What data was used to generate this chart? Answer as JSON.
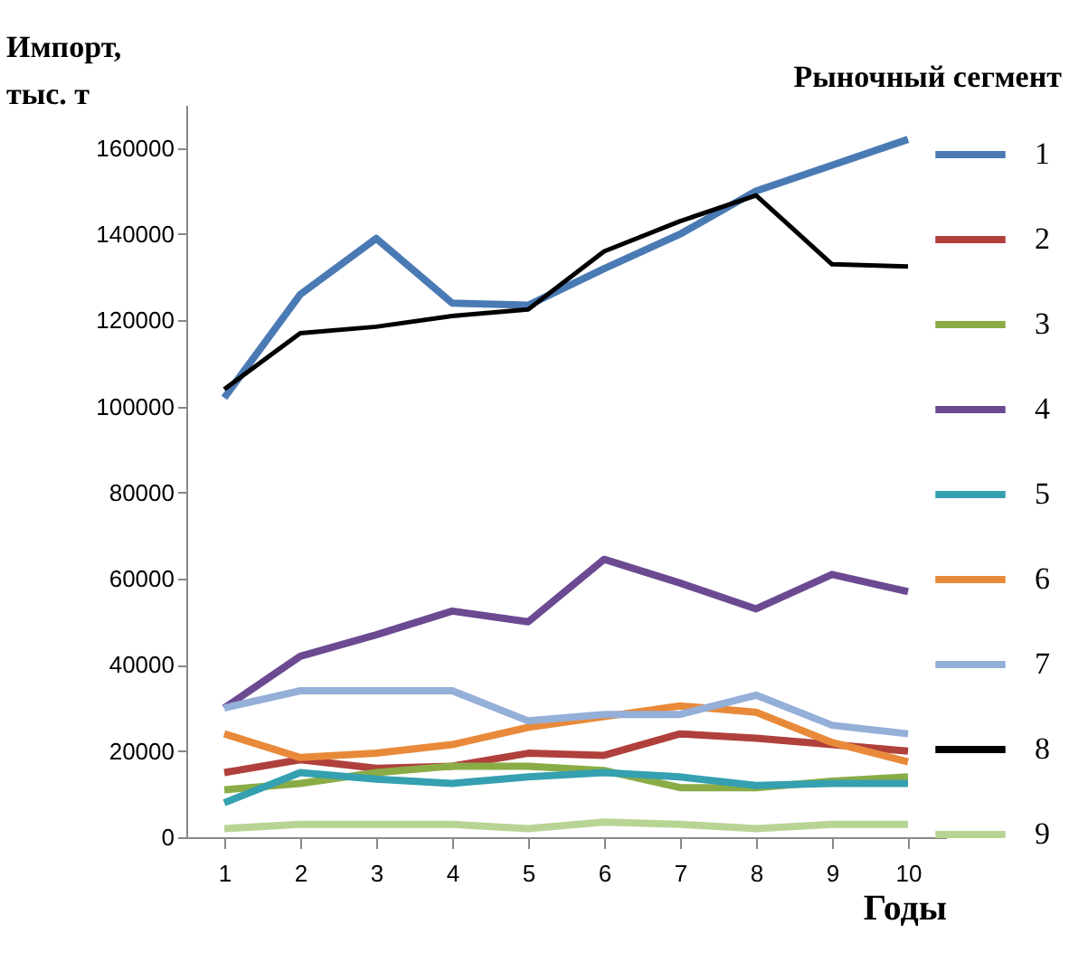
{
  "chart_data": {
    "type": "line",
    "ylabel": "Импорт, тыс. т",
    "xlabel": "Годы",
    "legend_title": "Рыночный сегмент",
    "categories": [
      "1",
      "2",
      "3",
      "4",
      "5",
      "6",
      "7",
      "8",
      "9",
      "10"
    ],
    "ylim": [
      0,
      170000
    ],
    "yticks": [
      0,
      20000,
      40000,
      60000,
      80000,
      100000,
      120000,
      140000,
      160000
    ],
    "grid": false,
    "legend": "right",
    "series": [
      {
        "name": "1",
        "color": "#4a7ab4",
        "values": [
          102000,
          126000,
          139000,
          124000,
          123500,
          132000,
          140000,
          150000,
          156000,
          162000
        ]
      },
      {
        "name": "2",
        "color": "#b0403c",
        "values": [
          15000,
          18000,
          16000,
          16500,
          19500,
          19000,
          24000,
          23000,
          21500,
          20000
        ]
      },
      {
        "name": "3",
        "color": "#8aac46",
        "values": [
          11000,
          12500,
          15000,
          16500,
          16500,
          15500,
          11500,
          11500,
          13000,
          14000
        ]
      },
      {
        "name": "4",
        "color": "#6c4a92",
        "values": [
          30000,
          42000,
          47000,
          52500,
          50000,
          64500,
          59000,
          53000,
          61000,
          57000
        ]
      },
      {
        "name": "5",
        "color": "#35a0b0",
        "values": [
          8000,
          15000,
          13500,
          12500,
          14000,
          15000,
          14000,
          12000,
          12500,
          12500
        ]
      },
      {
        "name": "6",
        "color": "#e88a3a",
        "values": [
          24000,
          18500,
          19500,
          21500,
          25500,
          28000,
          30500,
          29000,
          22000,
          17500
        ]
      },
      {
        "name": "7",
        "color": "#94afd8",
        "values": [
          30000,
          34000,
          34000,
          34000,
          27000,
          28500,
          28500,
          33000,
          26000,
          24000
        ]
      },
      {
        "name": "8",
        "color": "#000000",
        "values": [
          104000,
          117000,
          118500,
          121000,
          122500,
          136000,
          143000,
          149000,
          133000,
          132500
        ]
      },
      {
        "name": "9",
        "color": "#b8d494",
        "values": [
          2000,
          3000,
          3000,
          3000,
          2000,
          3500,
          3000,
          2000,
          3000,
          3000
        ]
      }
    ]
  }
}
